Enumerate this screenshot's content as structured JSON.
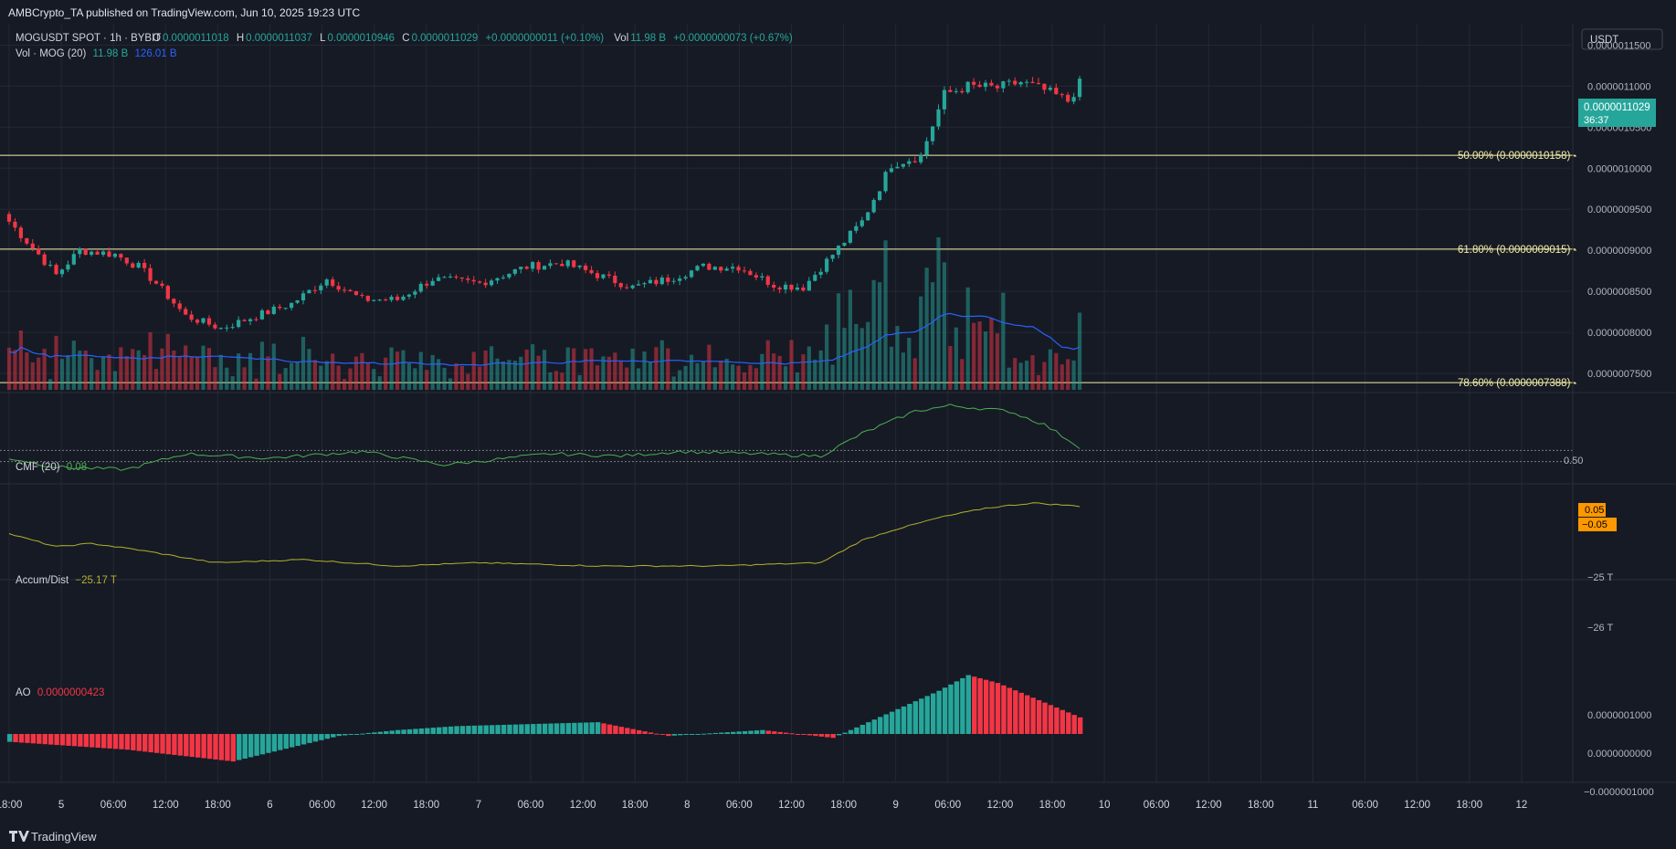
{
  "header": {
    "published": "AMBCrypto_TA published on TradingView.com, Jun 10, 2025 19:23 UTC",
    "brand": "TradingView"
  },
  "legend": {
    "symbol": "MOGUSDT SPOT · 1h · BYBIT",
    "o_label": "O",
    "o": "0.0000011018",
    "h_label": "H",
    "h": "0.0000011037",
    "l_label": "L",
    "l": "0.0000010946",
    "c_label": "C",
    "c": "0.0000011029",
    "change": "+0.0000000011 (+0.10%)",
    "vol_label": "Vol",
    "vol": "11.98 B",
    "vol_change": "+0.0000000073 (+0.67%)",
    "vol_ma_label": "Vol · MOG (20)",
    "vol_val": "11.98 B",
    "vol_ma": "126.01 B"
  },
  "currency": "USDT",
  "price_tag": {
    "value": "0.0000011029",
    "countdown": "36:37"
  },
  "colors": {
    "up": "#26a69a",
    "down": "#f23645",
    "fib": "#f5f0a8",
    "vol_ma": "#2962ff",
    "cmf": "#4caf50",
    "ad": "#b4b02c",
    "ao_up": "#26a69a",
    "ao_down": "#f23645",
    "tag_orange": "#ff9800"
  },
  "fib_levels": [
    {
      "label": "50.00% (0.0000010158)",
      "price": 1.0158e-06
    },
    {
      "label": "61.80% (0.0000009015)",
      "price": 9.015e-07
    },
    {
      "label": "78.60% (0.0000007388)",
      "price": 7.388e-07
    }
  ],
  "price_axis": [
    "0.0000011500",
    "0.0000011000",
    "0.0000010500",
    "0.0000010000",
    "0.0000009500",
    "0.0000009000",
    "0.0000008500",
    "0.0000008000",
    "0.0000007500"
  ],
  "cmf": {
    "label": "CMF (20)",
    "value": "0.08",
    "axis": [
      "0.50"
    ],
    "tags": [
      "0.05",
      "−0.05"
    ]
  },
  "ad": {
    "label": "Accum/Dist",
    "value": "−25.17 T",
    "axis": [
      "−25 T",
      "−26 T"
    ]
  },
  "ao": {
    "label": "AO",
    "value": "0.0000000423",
    "axis": [
      "0.0000001000",
      "0.0000000000",
      "−0.0000001000"
    ]
  },
  "time_axis": [
    "18:00",
    "5",
    "06:00",
    "12:00",
    "18:00",
    "6",
    "06:00",
    "12:00",
    "18:00",
    "7",
    "06:00",
    "12:00",
    "18:00",
    "8",
    "06:00",
    "12:00",
    "18:00",
    "9",
    "06:00",
    "12:00",
    "18:00",
    "10",
    "06:00",
    "12:00",
    "18:00",
    "11",
    "06:00",
    "12:00",
    "18:00",
    "12"
  ],
  "chart_data": {
    "type": "candlestick",
    "title": "MOGUSDT SPOT · 1h · BYBIT",
    "interval": "1h",
    "price_range": [
      7.3e-07,
      1.175e-06
    ],
    "close_key_points": [
      [
        0,
        9.35e-07
      ],
      [
        5,
        8.95e-07
      ],
      [
        8,
        8.7e-07
      ],
      [
        12,
        9e-07
      ],
      [
        18,
        8.95e-07
      ],
      [
        22,
        8.8e-07
      ],
      [
        25,
        8.6e-07
      ],
      [
        30,
        8.2e-07
      ],
      [
        36,
        8.05e-07
      ],
      [
        42,
        8.2e-07
      ],
      [
        48,
        8.35e-07
      ],
      [
        54,
        8.65e-07
      ],
      [
        60,
        8.4e-07
      ],
      [
        66,
        8.4e-07
      ],
      [
        72,
        8.65e-07
      ],
      [
        80,
        8.6e-07
      ],
      [
        88,
        8.8e-07
      ],
      [
        94,
        8.85e-07
      ],
      [
        100,
        8.7e-07
      ],
      [
        106,
        8.55e-07
      ],
      [
        112,
        8.65e-07
      ],
      [
        118,
        8.8e-07
      ],
      [
        124,
        8.8e-07
      ],
      [
        130,
        8.58e-07
      ],
      [
        135,
        8.55e-07
      ],
      [
        140,
        8.95e-07
      ],
      [
        145,
        9.35e-07
      ],
      [
        150,
        1.005e-06
      ],
      [
        155,
        1.015e-06
      ],
      [
        159,
        1.09e-06
      ],
      [
        163,
        1.1e-06
      ],
      [
        168,
        1.098e-06
      ],
      [
        172,
        1.105e-06
      ],
      [
        176,
        1.095e-06
      ],
      [
        180,
        1.082e-06
      ],
      [
        182,
        1.1029e-06
      ]
    ],
    "cmf_key_points": [
      [
        0,
        -0.02
      ],
      [
        8,
        -0.1
      ],
      [
        20,
        -0.12
      ],
      [
        30,
        0.02
      ],
      [
        44,
        -0.02
      ],
      [
        60,
        0.04
      ],
      [
        74,
        -0.08
      ],
      [
        92,
        0.02
      ],
      [
        104,
        0.0
      ],
      [
        114,
        0.04
      ],
      [
        126,
        0.02
      ],
      [
        138,
        0.0
      ],
      [
        145,
        0.2
      ],
      [
        154,
        0.4
      ],
      [
        160,
        0.45
      ],
      [
        170,
        0.4
      ],
      [
        176,
        0.28
      ],
      [
        182,
        0.08
      ]
    ],
    "ad_key_points": [
      [
        0,
        -25.6
      ],
      [
        8,
        -25.8
      ],
      [
        14,
        -25.75
      ],
      [
        22,
        -25.85
      ],
      [
        35,
        -26.05
      ],
      [
        50,
        -26.0
      ],
      [
        66,
        -26.1
      ],
      [
        80,
        -26.05
      ],
      [
        100,
        -26.1
      ],
      [
        120,
        -26.1
      ],
      [
        138,
        -26.05
      ],
      [
        145,
        -25.7
      ],
      [
        150,
        -25.55
      ],
      [
        158,
        -25.35
      ],
      [
        166,
        -25.2
      ],
      [
        174,
        -25.12
      ],
      [
        182,
        -25.17
      ]
    ],
    "ao_key_points": [
      [
        0,
        -2e-08
      ],
      [
        20,
        -4e-08
      ],
      [
        38,
        -7e-08
      ],
      [
        56,
        -5e-09
      ],
      [
        66,
        1e-08
      ],
      [
        76,
        2e-08
      ],
      [
        100,
        3e-08
      ],
      [
        112,
        -5e-09
      ],
      [
        128,
        1e-08
      ],
      [
        140,
        -1e-08
      ],
      [
        146,
        3e-08
      ],
      [
        158,
        1.1e-07
      ],
      [
        163,
        1.5e-07
      ],
      [
        168,
        1.3e-07
      ],
      [
        182,
        4.23e-08
      ]
    ],
    "fib_levels": [
      1.0158e-06,
      9.015e-07,
      7.388e-07
    ]
  }
}
